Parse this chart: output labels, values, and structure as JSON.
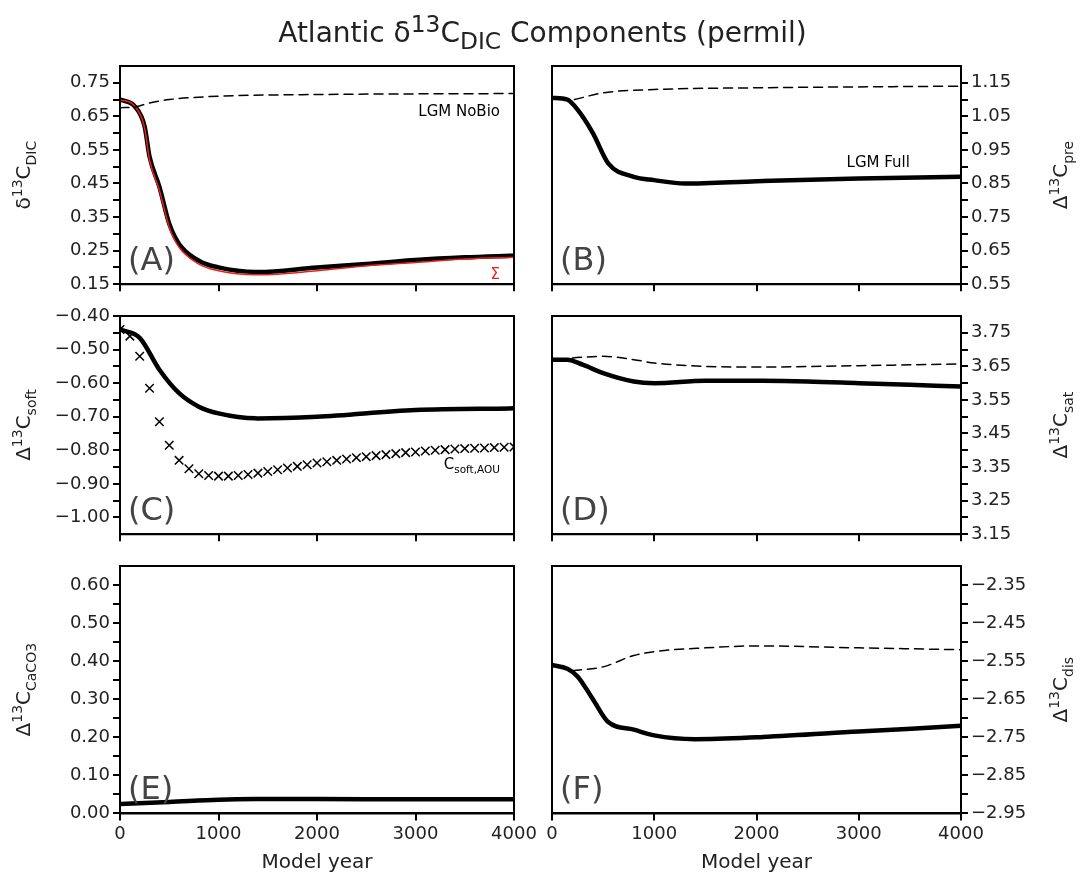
{
  "chart_data": [
    {
      "type": "line",
      "title": "Atlantic δ$^{13}$C$_{DIC}$ Components (permil)",
      "ylabel": "δ$^{13}$C$_{DIC}$",
      "annotations": [
        "(A)"
      ],
      "tick_labels": "y",
      "xlim": [
        0,
        4000
      ],
      "xticks": [
        0,
        1000,
        2000,
        3000,
        4000
      ],
      "ylim": [
        0.15,
        0.8
      ],
      "yticks": [
        0.15,
        {
          "value": 0.2,
          "label": null
        },
        0.25,
        {
          "value": 0.3,
          "label": null
        },
        0.35,
        {
          "value": 0.4,
          "label": null
        },
        0.45,
        {
          "value": 0.5,
          "label": null
        },
        0.55,
        {
          "value": 0.6,
          "label": null
        },
        0.65,
        {
          "value": 0.7,
          "label": null
        },
        0.75
      ],
      "series": [
        {
          "color": "#000000",
          "x": [
            0,
            150,
            250,
            300,
            400,
            500,
            600,
            800,
            1000,
            1400,
            2000,
            2500,
            3000,
            3500,
            4000
          ],
          "values": [
            0.7,
            0.68,
            0.62,
            0.53,
            0.44,
            0.33,
            0.27,
            0.22,
            0.2,
            0.186,
            0.2,
            0.21,
            0.222,
            0.23,
            0.235
          ]
        },
        {
          "name": "Σ",
          "color": "#e8201c",
          "x": [
            0,
            150,
            250,
            300,
            400,
            500,
            600,
            800,
            1000,
            1400,
            2000,
            2500,
            3000,
            3500,
            4000
          ],
          "values": [
            0.7,
            0.68,
            0.615,
            0.52,
            0.43,
            0.32,
            0.26,
            0.21,
            0.19,
            0.178,
            0.19,
            0.205,
            0.215,
            0.225,
            0.23
          ]
        },
        {
          "name": "LGM NoBio",
          "color": "#000000",
          "line_style": "dashed",
          "x": [
            0,
            150,
            300,
            500,
            1000,
            2000,
            4000
          ],
          "values": [
            0.676,
            0.678,
            0.69,
            0.7,
            0.71,
            0.715,
            0.718
          ]
        }
      ]
    },
    {
      "type": "line",
      "ylabel": "Δ$^{13}$C$_{pre}$",
      "annotations": [
        "(B)"
      ],
      "tick_labels": "y",
      "xlim": [
        0,
        4000
      ],
      "xticks": [
        0,
        1000,
        2000,
        3000,
        4000
      ],
      "ylim": [
        0.55,
        1.2
      ],
      "yticks": [
        0.55,
        {
          "value": 0.6,
          "label": null
        },
        0.65,
        {
          "value": 0.7,
          "label": null
        },
        0.75,
        {
          "value": 0.8,
          "label": null
        },
        0.85,
        {
          "value": 0.9,
          "label": null
        },
        0.95,
        {
          "value": 1.0,
          "label": null
        },
        1.05,
        {
          "value": 1.1,
          "label": null
        },
        1.15
      ],
      "series": [
        {
          "name": "LGM Full",
          "color": "#000000",
          "x": [
            0,
            150,
            250,
            400,
            550,
            800,
            1000,
            1300,
            2000,
            3000,
            4000
          ],
          "values": [
            1.105,
            1.1,
            1.07,
            1.0,
            0.91,
            0.87,
            0.86,
            0.85,
            0.857,
            0.865,
            0.87
          ]
        },
        {
          "color": "#000000",
          "line_style": "dashed",
          "x": [
            220,
            500,
            1000,
            2000,
            4000
          ],
          "values": [
            1.1,
            1.12,
            1.13,
            1.135,
            1.14
          ]
        }
      ]
    },
    {
      "type": "line",
      "ylabel": "Δ$^{13}$C$_{soft}$",
      "annotations": [
        "(C)"
      ],
      "tick_labels": "y",
      "xlim": [
        0,
        4000
      ],
      "xticks": [
        0,
        1000,
        2000,
        3000,
        4000
      ],
      "ylim": [
        -1.05,
        -0.4
      ],
      "yticks": [
        {
          "value": -1.0,
          "label": "−1.00"
        },
        {
          "value": -0.95,
          "label": null
        },
        {
          "value": -0.9,
          "label": "−0.90"
        },
        {
          "value": -0.85,
          "label": null
        },
        {
          "value": -0.8,
          "label": "−0.80"
        },
        {
          "value": -0.75,
          "label": null
        },
        {
          "value": -0.7,
          "label": "−0.70"
        },
        {
          "value": -0.65,
          "label": null
        },
        {
          "value": -0.6,
          "label": "−0.60"
        },
        {
          "value": -0.55,
          "label": null
        },
        {
          "value": -0.5,
          "label": "−0.50"
        },
        {
          "value": -0.45,
          "label": null
        },
        {
          "value": -0.4,
          "label": "−0.40"
        }
      ],
      "series": [
        {
          "color": "#000000",
          "x": [
            0,
            200,
            400,
            600,
            800,
            1000,
            1400,
            2000,
            3000,
            4000
          ],
          "values": [
            -0.44,
            -0.465,
            -0.56,
            -0.63,
            -0.67,
            -0.69,
            -0.705,
            -0.7,
            -0.68,
            -0.675
          ]
        },
        {
          "name": "C$_{soft,AOU}$",
          "type": "scatter",
          "marker": "cross",
          "color": "#000000",
          "x": [
            0,
            100,
            200,
            300,
            400,
            500,
            600,
            700,
            800,
            900,
            1000,
            1100,
            1200,
            1300,
            1400,
            1500,
            1600,
            1700,
            1800,
            1900,
            2000,
            2100,
            2200,
            2300,
            2400,
            2500,
            2600,
            2700,
            2800,
            2900,
            3000,
            3100,
            3200,
            3300,
            3400,
            3500,
            3600,
            3700,
            3800,
            3900,
            4000
          ],
          "values": [
            -0.44,
            -0.46,
            -0.52,
            -0.615,
            -0.715,
            -0.785,
            -0.83,
            -0.855,
            -0.87,
            -0.875,
            -0.877,
            -0.877,
            -0.875,
            -0.872,
            -0.868,
            -0.863,
            -0.858,
            -0.853,
            -0.848,
            -0.843,
            -0.838,
            -0.834,
            -0.83,
            -0.826,
            -0.822,
            -0.819,
            -0.816,
            -0.813,
            -0.81,
            -0.807,
            -0.805,
            -0.802,
            -0.8,
            -0.798,
            -0.796,
            -0.795,
            -0.794,
            -0.793,
            -0.792,
            -0.791,
            -0.79
          ]
        }
      ]
    },
    {
      "type": "line",
      "ylabel": "Δ$^{13}$C$_{sat}$",
      "annotations": [
        "(D)"
      ],
      "tick_labels": "y",
      "xlim": [
        0,
        4000
      ],
      "xticks": [
        0,
        1000,
        2000,
        3000,
        4000
      ],
      "ylim": [
        3.15,
        3.8
      ],
      "yticks": [
        3.15,
        {
          "value": 3.2,
          "label": null
        },
        3.25,
        {
          "value": 3.3,
          "label": null
        },
        3.35,
        {
          "value": 3.4,
          "label": null
        },
        3.45,
        {
          "value": 3.5,
          "label": null
        },
        3.55,
        {
          "value": 3.6,
          "label": null
        },
        3.65,
        {
          "value": 3.7,
          "label": null
        },
        3.75
      ],
      "series": [
        {
          "color": "#000000",
          "x": [
            0,
            150,
            300,
            500,
            800,
            1000,
            1500,
            2000,
            2500,
            3000,
            3500,
            4000
          ],
          "values": [
            3.67,
            3.67,
            3.655,
            3.63,
            3.605,
            3.6,
            3.607,
            3.607,
            3.605,
            3.6,
            3.595,
            3.59
          ]
        },
        {
          "color": "#000000",
          "line_style": "dashed",
          "x": [
            200,
            500,
            800,
            1000,
            1500,
            2000,
            3000,
            4000
          ],
          "values": [
            3.675,
            3.68,
            3.67,
            3.66,
            3.65,
            3.648,
            3.652,
            3.657
          ]
        }
      ]
    },
    {
      "type": "line",
      "ylabel": "Δ$^{13}$C$_{CaCO3}$",
      "xlabel": "Model year",
      "annotations": [
        "(E)"
      ],
      "xlim": [
        0,
        4000
      ],
      "xticks": [
        0,
        1000,
        2000,
        3000,
        4000
      ],
      "ylim": [
        0,
        0.65
      ],
      "yticks": [
        {
          "value": 0,
          "label": "0.00"
        },
        {
          "value": 0.05,
          "label": null
        },
        {
          "value": 0.1,
          "label": "0.10"
        },
        {
          "value": 0.15,
          "label": null
        },
        {
          "value": 0.2,
          "label": "0.20"
        },
        {
          "value": 0.25,
          "label": null
        },
        {
          "value": 0.3,
          "label": "0.30"
        },
        {
          "value": 0.35,
          "label": null
        },
        {
          "value": 0.4,
          "label": "0.40"
        },
        {
          "value": 0.45,
          "label": null
        },
        {
          "value": 0.5,
          "label": "0.50"
        },
        {
          "value": 0.55,
          "label": null
        },
        {
          "value": 0.6,
          "label": "0.60"
        }
      ],
      "series": [
        {
          "color": "#000000",
          "x": [
            0,
            500,
            1000,
            1500,
            2000,
            3000,
            4000
          ],
          "values": [
            0.025,
            0.03,
            0.036,
            0.038,
            0.038,
            0.037,
            0.037
          ]
        }
      ]
    },
    {
      "type": "line",
      "ylabel": "Δ$^{13}$C$_{dis}$",
      "xlabel": "Model year",
      "annotations": [
        "(F)"
      ],
      "xlim": [
        0,
        4000
      ],
      "xticks": [
        0,
        1000,
        2000,
        3000,
        4000
      ],
      "ylim": [
        -2.95,
        -2.3
      ],
      "yticks": [
        {
          "value": -2.95,
          "label": "−2.95"
        },
        {
          "value": -2.9,
          "label": null
        },
        {
          "value": -2.85,
          "label": "−2.85"
        },
        {
          "value": -2.8,
          "label": null
        },
        {
          "value": -2.75,
          "label": "−2.75"
        },
        {
          "value": -2.7,
          "label": null
        },
        {
          "value": -2.65,
          "label": "−2.65"
        },
        {
          "value": -2.6,
          "label": null
        },
        {
          "value": -2.55,
          "label": "−2.55"
        },
        {
          "value": -2.5,
          "label": null
        },
        {
          "value": -2.45,
          "label": "−2.45"
        },
        {
          "value": -2.4,
          "label": null
        },
        {
          "value": -2.35,
          "label": "−2.35"
        }
      ],
      "series": [
        {
          "color": "#000000",
          "x": [
            0,
            150,
            250,
            400,
            550,
            800,
            1000,
            1400,
            2000,
            3000,
            4000
          ],
          "values": [
            -2.56,
            -2.57,
            -2.59,
            -2.65,
            -2.71,
            -2.73,
            -2.745,
            -2.755,
            -2.75,
            -2.735,
            -2.72
          ]
        },
        {
          "color": "#000000",
          "line_style": "dashed",
          "x": [
            200,
            500,
            800,
            1000,
            1500,
            2000,
            3000,
            4000
          ],
          "values": [
            -2.575,
            -2.565,
            -2.535,
            -2.525,
            -2.515,
            -2.51,
            -2.515,
            -2.52
          ]
        }
      ]
    }
  ]
}
